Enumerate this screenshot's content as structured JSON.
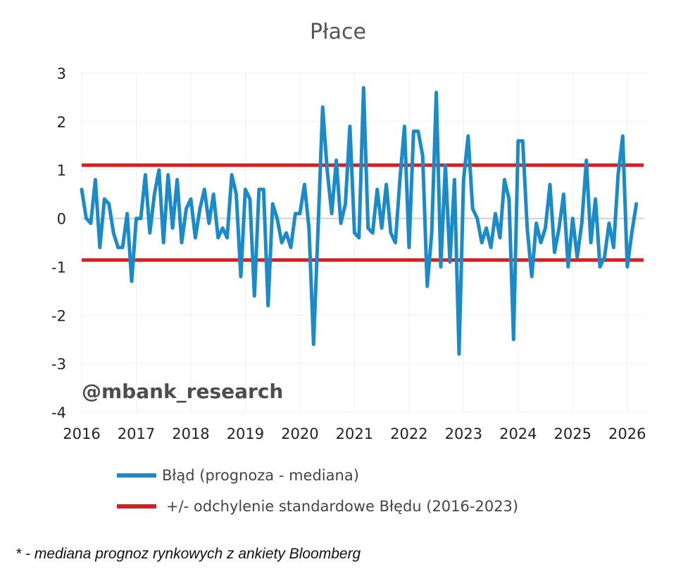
{
  "chart_data": {
    "type": "line",
    "title": "Płace",
    "watermark": "@mbank_research",
    "footnote": "* - mediana prognoz rynkowych z ankiety Bloomberg",
    "xlim": [
      2016,
      2026.3
    ],
    "ylim": [
      -4,
      3
    ],
    "x_ticks": [
      "2016",
      "2017",
      "2018",
      "2019",
      "2020",
      "2021",
      "2022",
      "2023",
      "2024",
      "2025",
      "2026"
    ],
    "y_ticks": [
      "3",
      "2",
      "1",
      "0",
      "-1",
      "-2",
      "-3",
      "-4"
    ],
    "grid": true,
    "legend_position": "bottom",
    "series": [
      {
        "name": "Błąd (prognoza - mediana)",
        "color": "#1a8ac8",
        "values": [
          0.6,
          0.0,
          -0.1,
          0.8,
          -0.6,
          0.4,
          0.3,
          -0.3,
          -0.6,
          -0.6,
          0.1,
          -1.3,
          0.0,
          0.0,
          0.9,
          -0.3,
          0.5,
          1.0,
          -0.5,
          0.9,
          -0.2,
          0.8,
          -0.5,
          0.2,
          0.4,
          -0.4,
          0.2,
          0.6,
          -0.1,
          0.5,
          -0.4,
          -0.2,
          -0.4,
          0.9,
          0.5,
          -1.2,
          0.6,
          0.4,
          -1.6,
          0.6,
          0.6,
          -1.8,
          0.3,
          0.0,
          -0.5,
          -0.3,
          -0.6,
          0.1,
          0.1,
          0.7,
          -0.2,
          -2.6,
          -0.2,
          2.3,
          1.0,
          0.1,
          1.2,
          -0.1,
          0.3,
          1.9,
          -0.3,
          -0.4,
          2.7,
          -0.2,
          -0.3,
          0.6,
          -0.2,
          0.7,
          -0.3,
          -0.5,
          0.8,
          1.9,
          -0.6,
          1.8,
          1.8,
          1.3,
          -1.4,
          -0.3,
          2.6,
          -1.0,
          1.1,
          -0.9,
          0.8,
          -2.8,
          0.8,
          1.7,
          0.2,
          0.0,
          -0.5,
          -0.2,
          -0.6,
          0.1,
          -0.4,
          0.8,
          0.4,
          -2.5,
          1.6,
          1.6,
          -0.2,
          -1.2,
          -0.1,
          -0.5,
          -0.2,
          0.7,
          -0.7,
          -0.2,
          0.5,
          -1.0,
          0.0,
          -0.8,
          -0.1,
          1.2,
          -0.5,
          0.4,
          -1.0,
          -0.8,
          -0.1,
          -0.6,
          0.9,
          1.7,
          -1.0,
          -0.3,
          0.3
        ]
      },
      {
        "name": "+/- odchylenie standardowe Błędu (2016-2023)",
        "color": "#d42020",
        "values": [
          1.1,
          -0.86
        ]
      }
    ]
  }
}
